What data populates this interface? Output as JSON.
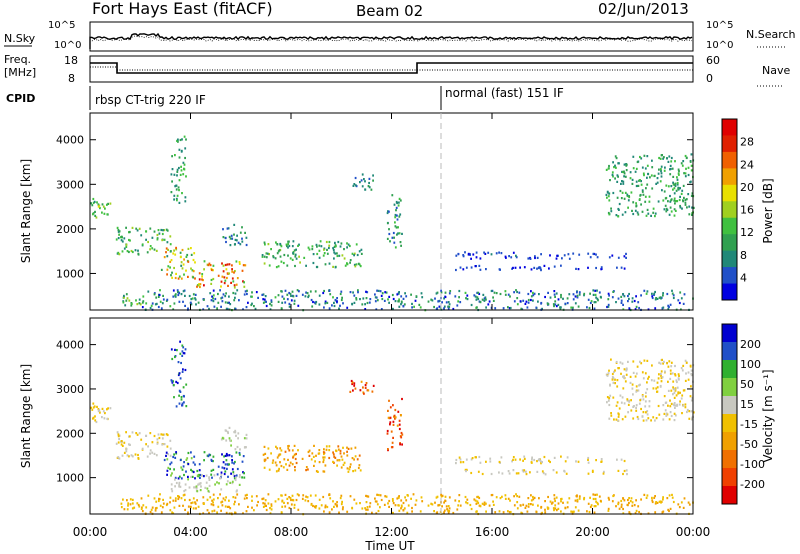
{
  "header": {
    "station": "Fort Hays East (fitACF)",
    "beam": "Beam 02",
    "date": "02/Jun/2013"
  },
  "summary": {
    "nsky_label": "N.Sky",
    "nsearch_label": "N.Search",
    "noise_ticks": [
      "10^5",
      "10^0"
    ],
    "freq_label_line1": "Freq.",
    "freq_label_line2": "[MHz]",
    "freq_ticks": [
      "18",
      "8"
    ],
    "nave_label": "Nave",
    "nave_ticks": [
      "60",
      "0"
    ],
    "cpid_label": "CPID",
    "cpid_segments": [
      {
        "label": "rbsp CT-trig 220 IF",
        "start_hour": 0,
        "end_hour": 14
      },
      {
        "label": "normal (fast) 151 IF",
        "start_hour": 14,
        "end_hour": 24
      }
    ]
  },
  "x_axis": {
    "label": "Time UT",
    "ticks": [
      "00:00",
      "04:00",
      "08:00",
      "12:00",
      "16:00",
      "20:00",
      "00:00"
    ],
    "range_hours": [
      0,
      24
    ]
  },
  "chart_data": [
    {
      "type": "heatmap",
      "title": "",
      "xlabel": "Time UT",
      "ylabel": "Slant Range [km]",
      "xlim_hours": [
        0,
        24
      ],
      "ylim": [
        180,
        4600
      ],
      "y_ticks": [
        "4000",
        "3000",
        "2000",
        "1000"
      ],
      "colorbar": {
        "label": "Power [dB]",
        "ticks": [
          "28",
          "24",
          "20",
          "16",
          "12",
          "8",
          "4"
        ],
        "range": [
          0,
          32
        ],
        "colors": [
          "#0000e0",
          "#2050c8",
          "#208878",
          "#30a050",
          "#40c040",
          "#a0d020",
          "#e8e000",
          "#f0a000",
          "#f06000",
          "#e02000",
          "#e00000"
        ]
      },
      "scatter_regions": [
        {
          "t": [
            0.0,
            1.0
          ],
          "r": [
            2250,
            2700
          ],
          "v": [
            8,
            18
          ]
        },
        {
          "t": [
            1.0,
            3.2
          ],
          "r": [
            1450,
            2050
          ],
          "v": [
            6,
            16
          ]
        },
        {
          "t": [
            2.8,
            4.2
          ],
          "r": [
            900,
            1600
          ],
          "v": [
            8,
            26
          ]
        },
        {
          "t": [
            4.2,
            6.2
          ],
          "r": [
            700,
            1300
          ],
          "v": [
            12,
            30
          ]
        },
        {
          "t": [
            3.2,
            3.8
          ],
          "r": [
            2600,
            4100
          ],
          "v": [
            6,
            14
          ]
        },
        {
          "t": [
            5.2,
            6.2
          ],
          "r": [
            1650,
            2150
          ],
          "v": [
            4,
            10
          ]
        },
        {
          "t": [
            6.8,
            10.8
          ],
          "r": [
            1150,
            1750
          ],
          "v": [
            6,
            16
          ]
        },
        {
          "t": [
            10.3,
            11.3
          ],
          "r": [
            2900,
            3250
          ],
          "v": [
            4,
            10
          ]
        },
        {
          "t": [
            11.8,
            12.4
          ],
          "r": [
            1600,
            2800
          ],
          "v": [
            4,
            14
          ]
        },
        {
          "t": [
            20.5,
            24.0
          ],
          "r": [
            2300,
            3700
          ],
          "v": [
            6,
            14
          ]
        },
        {
          "t": [
            14.5,
            21.5
          ],
          "r": [
            1350,
            1500
          ],
          "v": [
            2,
            6
          ]
        },
        {
          "t": [
            14.5,
            21.5
          ],
          "r": [
            1100,
            1200
          ],
          "v": [
            2,
            6
          ]
        },
        {
          "t": [
            2.0,
            24.0
          ],
          "r": [
            200,
            650
          ],
          "v": [
            2,
            12
          ]
        },
        {
          "t": [
            1.2,
            2.2
          ],
          "r": [
            300,
            560
          ],
          "v": [
            6,
            16
          ]
        }
      ]
    },
    {
      "type": "heatmap",
      "title": "",
      "xlabel": "Time UT",
      "ylabel": "Slant Range [km]",
      "ylabel_unit": "Velocity [m s⁻¹]",
      "xlim_hours": [
        0,
        24
      ],
      "ylim": [
        180,
        4600
      ],
      "y_ticks": [
        "4000",
        "3000",
        "2000",
        "1000"
      ],
      "colorbar": {
        "label": "Velocity [m s⁻¹]",
        "ticks": [
          "200",
          "100",
          "50",
          "15",
          "-15",
          "-50",
          "-100",
          "-200"
        ],
        "range": [
          -250,
          250
        ],
        "colors": [
          "#e00000",
          "#f04000",
          "#f07000",
          "#f0a000",
          "#f0c000",
          "#c8c8c0",
          "#80d040",
          "#30b030",
          "#2050c8",
          "#0000d0"
        ]
      },
      "scatter_regions": [
        {
          "t": [
            0.0,
            1.0
          ],
          "r": [
            2250,
            2700
          ],
          "v": [
            -15,
            15
          ]
        },
        {
          "t": [
            1.0,
            3.2
          ],
          "r": [
            1450,
            2050
          ],
          "v": [
            -15,
            15
          ]
        },
        {
          "t": [
            2.8,
            4.2
          ],
          "r": [
            1000,
            1600
          ],
          "v": [
            60,
            230
          ]
        },
        {
          "t": [
            4.2,
            6.2
          ],
          "r": [
            1000,
            1600
          ],
          "v": [
            100,
            230
          ]
        },
        {
          "t": [
            3.2,
            6.0
          ],
          "r": [
            700,
            1100
          ],
          "v": [
            20,
            60
          ]
        },
        {
          "t": [
            3.2,
            3.8
          ],
          "r": [
            2600,
            4100
          ],
          "v": [
            100,
            240
          ]
        },
        {
          "t": [
            5.2,
            6.2
          ],
          "r": [
            1650,
            2150
          ],
          "v": [
            20,
            60
          ]
        },
        {
          "t": [
            6.8,
            10.8
          ],
          "r": [
            1150,
            1750
          ],
          "v": [
            -120,
            -20
          ]
        },
        {
          "t": [
            10.3,
            11.3
          ],
          "r": [
            2900,
            3250
          ],
          "v": [
            -240,
            -60
          ]
        },
        {
          "t": [
            11.8,
            12.4
          ],
          "r": [
            1600,
            2800
          ],
          "v": [
            -240,
            -60
          ]
        },
        {
          "t": [
            20.5,
            24.0
          ],
          "r": [
            2300,
            3700
          ],
          "v": [
            -15,
            15
          ]
        },
        {
          "t": [
            14.5,
            21.5
          ],
          "r": [
            1350,
            1500
          ],
          "v": [
            -15,
            15
          ]
        },
        {
          "t": [
            14.5,
            21.5
          ],
          "r": [
            1100,
            1200
          ],
          "v": [
            -15,
            15
          ]
        },
        {
          "t": [
            2.0,
            24.0
          ],
          "r": [
            200,
            650
          ],
          "v": [
            -80,
            -20
          ]
        },
        {
          "t": [
            1.2,
            2.2
          ],
          "r": [
            300,
            560
          ],
          "v": [
            -60,
            -15
          ]
        }
      ]
    }
  ]
}
